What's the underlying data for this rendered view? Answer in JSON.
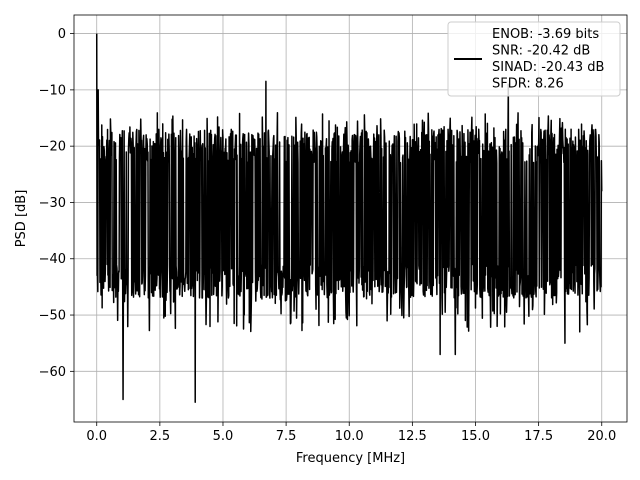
{
  "chart_data": {
    "type": "line",
    "title": "",
    "xlabel": "Frequency [MHz]",
    "ylabel": "PSD [dB]",
    "xlim": [
      -0.9,
      21.0
    ],
    "ylim": [
      -69.0,
      3.3
    ],
    "xticks": [
      0.0,
      2.5,
      5.0,
      7.5,
      10.0,
      12.5,
      15.0,
      17.5,
      20.0
    ],
    "xtick_labels": [
      "0.0",
      "2.5",
      "5.0",
      "7.5",
      "10.0",
      "12.5",
      "15.0",
      "17.5",
      "20.0"
    ],
    "yticks": [
      0,
      -10,
      -20,
      -30,
      -40,
      -50,
      -60
    ],
    "ytick_labels": [
      "0",
      "−10",
      "−20",
      "−30",
      "−40",
      "−50",
      "−60"
    ],
    "grid": true,
    "legend_position": "top-right",
    "legend_lines": [
      "ENOB: -3.69 bits",
      "SNR: -20.42 dB",
      "SINAD: -20.43 dB",
      "SFDR: 8.26"
    ],
    "series_color": "#000000",
    "series": [
      {
        "x_range": [
          0.0,
          20.0
        ],
        "description_points": [
          {
            "x": 0.0,
            "y": 0.0
          },
          {
            "x": 0.05,
            "y": -10.0
          },
          {
            "x": 1.05,
            "y": -65.0
          },
          {
            "x": 3.9,
            "y": -65.5
          },
          {
            "x": 6.7,
            "y": -8.5
          },
          {
            "x": 13.6,
            "y": -57.0
          },
          {
            "x": 14.2,
            "y": -57.0
          },
          {
            "x": 16.3,
            "y": -9.0
          },
          {
            "x": 18.55,
            "y": -55.0
          },
          {
            "x": 20.0,
            "y": -28.0
          }
        ],
        "noise_band_upper_db": -17.0,
        "noise_band_lower_db": -47.0
      }
    ]
  }
}
